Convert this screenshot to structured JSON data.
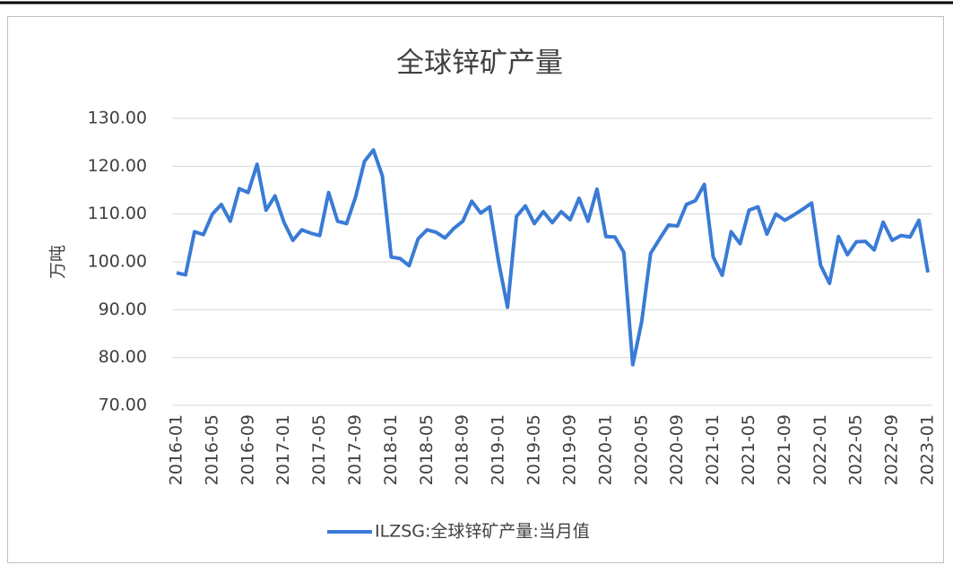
{
  "chart_data": {
    "type": "line",
    "title": "全球锌矿产量",
    "y_label": "万吨",
    "categories": [
      "2016-01",
      null,
      null,
      null,
      "2016-05",
      null,
      null,
      null,
      "2016-09",
      null,
      null,
      null,
      "2017-01",
      null,
      null,
      null,
      "2017-05",
      null,
      null,
      null,
      "2017-09",
      null,
      null,
      null,
      "2018-01",
      null,
      null,
      null,
      "2018-05",
      null,
      null,
      null,
      "2018-09",
      null,
      null,
      null,
      "2019-01",
      null,
      null,
      null,
      "2019-05",
      null,
      null,
      null,
      "2019-09",
      null,
      null,
      null,
      "2020-01",
      null,
      null,
      null,
      "2020-05",
      null,
      null,
      null,
      "2020-09",
      null,
      null,
      null,
      "2021-01",
      null,
      null,
      null,
      "2021-05",
      null,
      null,
      null,
      "2021-09",
      null,
      null,
      null,
      "2022-01",
      null,
      null,
      null,
      "2022-05",
      null,
      null,
      null,
      "2022-09",
      null,
      null,
      null,
      "2023-01"
    ],
    "series": [
      {
        "name": "ILZSG:全球锌矿产量:当月值",
        "color": "#3a7bd5",
        "values": [
          97.7,
          97.3,
          106.3,
          105.7,
          110.0,
          112.0,
          108.5,
          115.3,
          114.5,
          120.4,
          110.8,
          113.8,
          108.3,
          104.5,
          106.7,
          106.0,
          105.5,
          114.5,
          108.5,
          108.0,
          113.5,
          121.0,
          123.4,
          118.0,
          101.0,
          100.7,
          99.2,
          104.8,
          106.7,
          106.2,
          105.0,
          107.0,
          108.5,
          112.7,
          110.2,
          111.5,
          100.0,
          90.5,
          109.5,
          111.7,
          108.0,
          110.5,
          108.2,
          110.5,
          108.8,
          113.3,
          108.5,
          115.2,
          105.3,
          105.2,
          102.0,
          78.5,
          87.5,
          101.8,
          104.8,
          107.7,
          107.5,
          112.0,
          112.8,
          116.2,
          101.0,
          97.2,
          106.3,
          103.8,
          110.8,
          111.5,
          105.8,
          110.0,
          108.7,
          109.8,
          111.0,
          112.3,
          99.3,
          95.5,
          105.3,
          101.5,
          104.2,
          104.3,
          102.5,
          108.3,
          104.5,
          105.5,
          105.2,
          108.7,
          97.8
        ]
      }
    ],
    "ylim": [
      70,
      130
    ],
    "yticks": [
      {
        "value": 70,
        "label": "70.00"
      },
      {
        "value": 80,
        "label": "80.00"
      },
      {
        "value": 90,
        "label": "90.00"
      },
      {
        "value": 100,
        "label": "100.00"
      },
      {
        "value": 110,
        "label": "110.00"
      },
      {
        "value": 120,
        "label": "120.00"
      },
      {
        "value": 130,
        "label": "130.00"
      }
    ],
    "grid": true,
    "legend": "bottom"
  }
}
